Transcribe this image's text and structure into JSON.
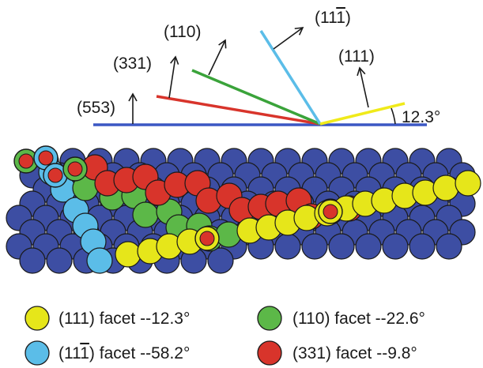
{
  "colors": {
    "substrate": "#3d4ea3",
    "f111": "#e6e61a",
    "f110": "#5cb848",
    "f11b1": "#5bbde8",
    "f331": "#d8342b",
    "base_line": "#3b57c4",
    "outline": "#1a1a1a"
  },
  "planes": {
    "p553": "(553)",
    "p331": "(331)",
    "p110": "(110)",
    "p11b1_prefix": "(11",
    "p11b1_bar": "1",
    "p11b1_suffix": ")",
    "p111": "(111)",
    "angle": "12.3°"
  },
  "legend": {
    "f111": "(111) facet --12.3°",
    "f110": "(110) facet --22.6°",
    "f11b1_prefix": "(11",
    "f11b1_bar": "1",
    "f11b1_suffix": ") facet --58.2°",
    "f331": "(331) facet --9.8°"
  }
}
